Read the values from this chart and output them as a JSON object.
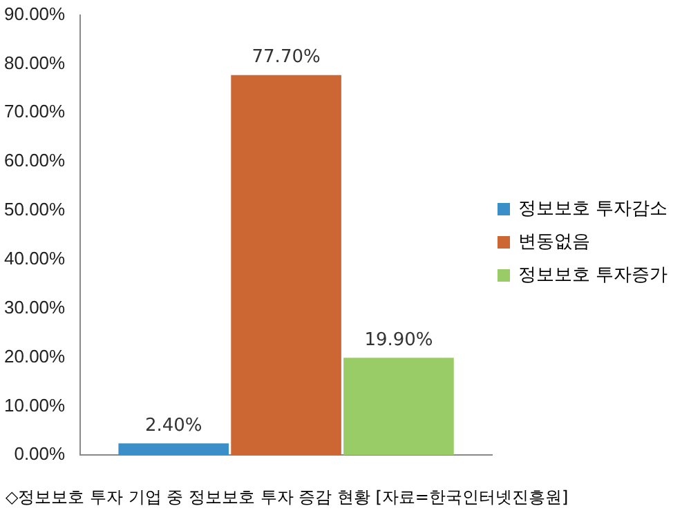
{
  "chart_data": {
    "type": "bar",
    "categories": [
      null
    ],
    "series": [
      {
        "name": "정보보호 투자감소",
        "color": "#3a8fc8",
        "values": [
          2.4
        ],
        "value_labels": [
          "2.40%"
        ]
      },
      {
        "name": "변동없음",
        "color": "#cc6633",
        "values": [
          77.7
        ],
        "value_labels": [
          "77.70%"
        ]
      },
      {
        "name": "정보보호 투자증가",
        "color": "#99cc66",
        "values": [
          19.9
        ],
        "value_labels": [
          "19.90%"
        ]
      }
    ],
    "ylim": [
      0,
      90
    ],
    "yticks": [
      {
        "value": 0,
        "label": "0.00%"
      },
      {
        "value": 10,
        "label": "10.00%"
      },
      {
        "value": 20,
        "label": "20.00%"
      },
      {
        "value": 30,
        "label": "30.00%"
      },
      {
        "value": 40,
        "label": "40.00%"
      },
      {
        "value": 50,
        "label": "50.00%"
      },
      {
        "value": 60,
        "label": "60.00%"
      },
      {
        "value": 70,
        "label": "70.00%"
      },
      {
        "value": 80,
        "label": "80.00%"
      },
      {
        "value": 90,
        "label": "90.00%"
      }
    ],
    "legend": "right",
    "annotations": [
      "◇정보보호 투자 기업 중 정보보호 투자 증감 현황 [자료=한국인터넷진흥원]"
    ]
  }
}
